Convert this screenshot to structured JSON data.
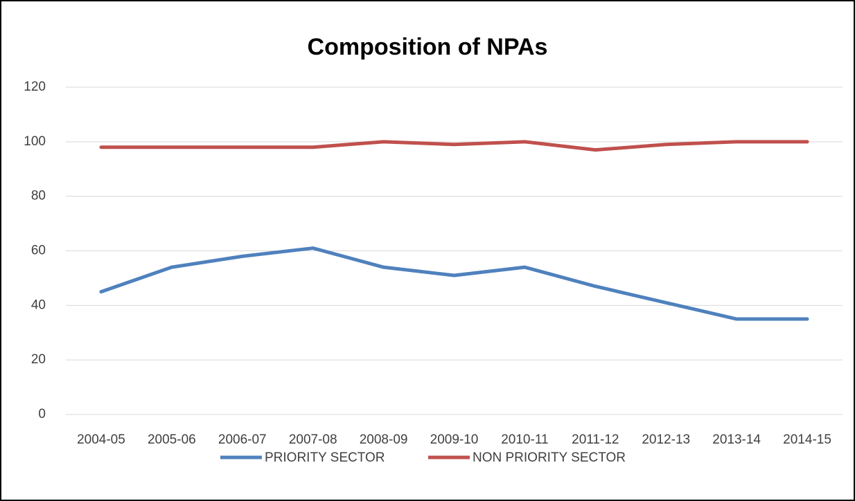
{
  "chart_data": {
    "type": "line",
    "title": "Composition of NPAs",
    "categories": [
      "2004-05",
      "2005-06",
      "2006-07",
      "2007-08",
      "2008-09",
      "2009-10",
      "2010-11",
      "2011-12",
      "2012-13",
      "2013-14",
      "2014-15"
    ],
    "series": [
      {
        "name": "PRIORITY SECTOR",
        "color": "#4f81bd",
        "values": [
          45,
          54,
          58,
          61,
          54,
          51,
          54,
          47,
          41,
          35,
          35
        ]
      },
      {
        "name": "NON PRIORITY SECTOR",
        "color": "#c0504d",
        "values": [
          98,
          98,
          98,
          98,
          100,
          99,
          100,
          97,
          99,
          100,
          100
        ]
      }
    ],
    "ylim": [
      0,
      120
    ],
    "yticks": [
      0,
      20,
      40,
      60,
      80,
      100,
      120
    ],
    "grid": true,
    "legend": "bottom"
  }
}
